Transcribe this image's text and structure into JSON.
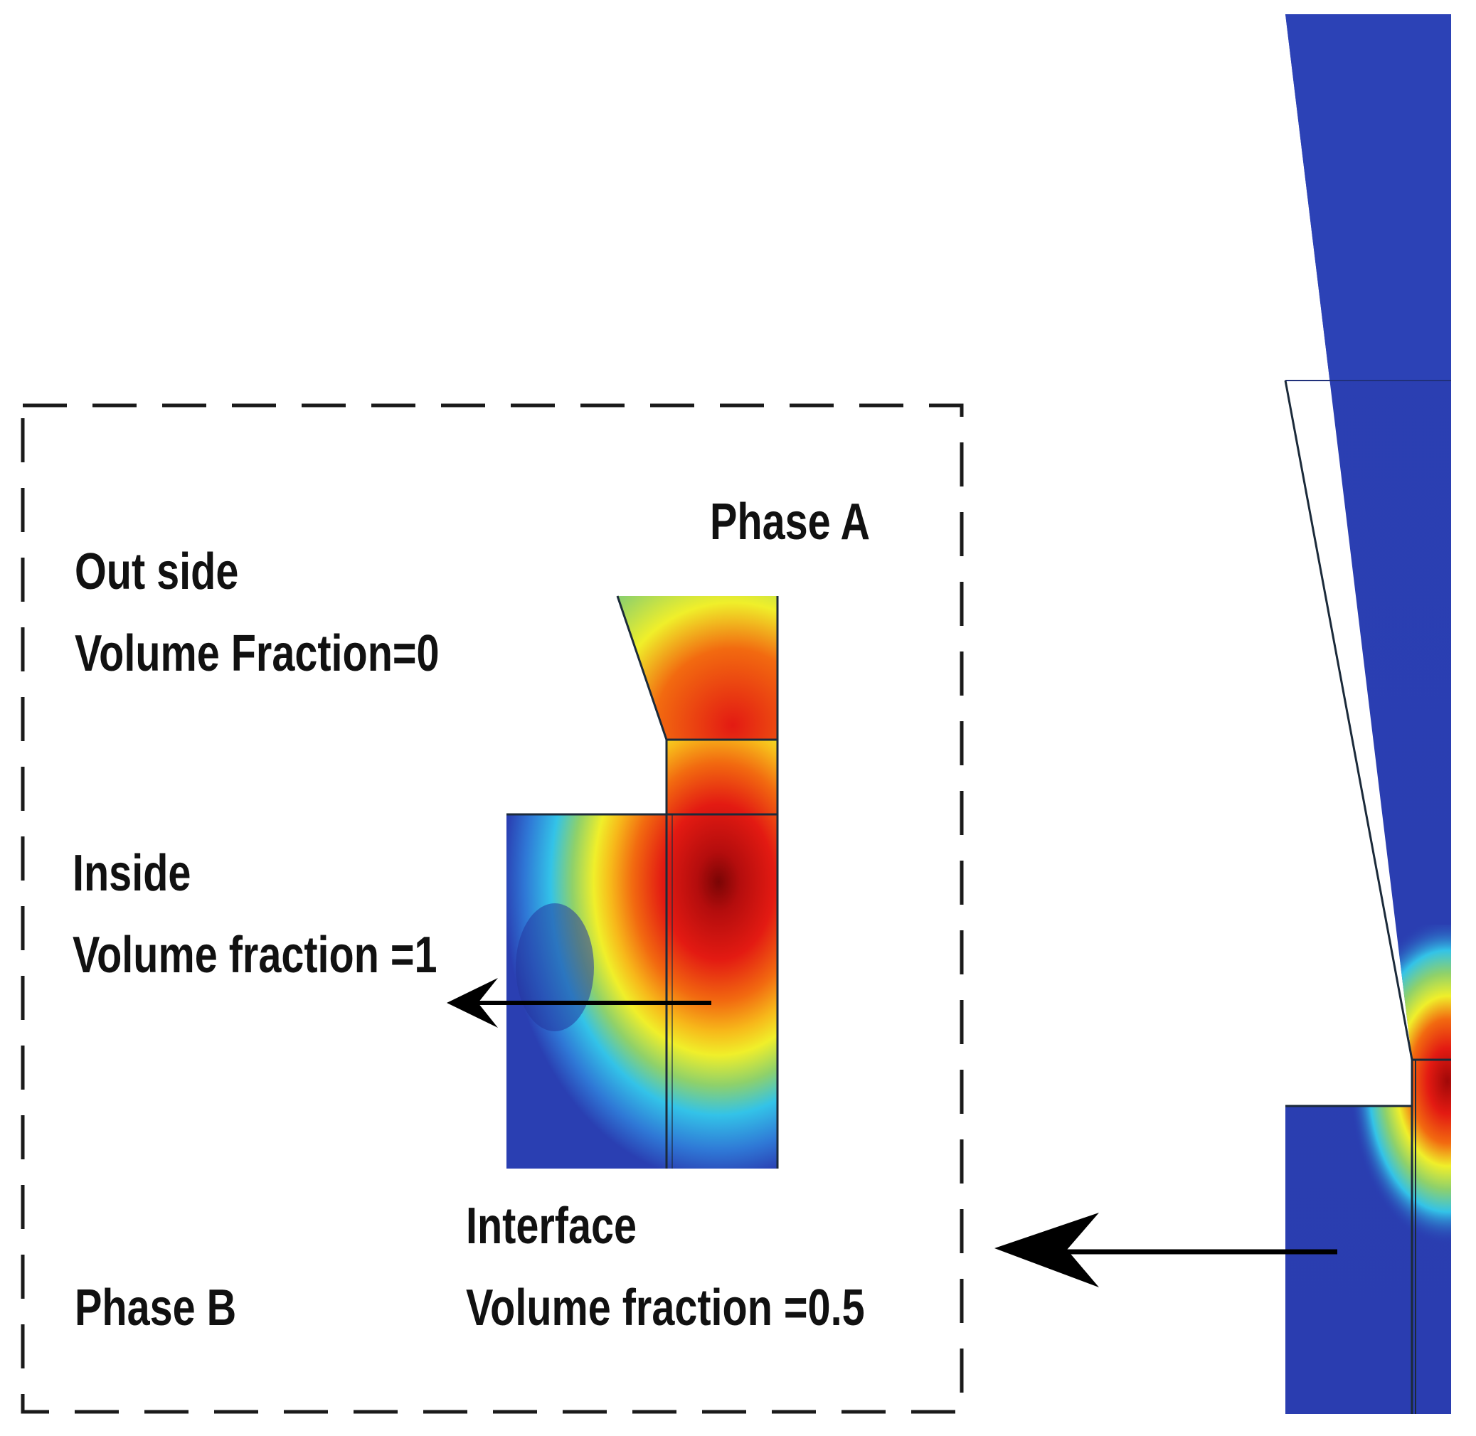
{
  "labels": {
    "phase_a": "Phase A",
    "outside_title": "Out side",
    "outside_value": "Volume Fraction=0",
    "inside_title": "Inside",
    "inside_value": "Volume fraction =1",
    "interface_title": "Interface",
    "interface_value": "Volume fraction =0.5",
    "phase_b": "Phase B"
  },
  "colors": {
    "background": "#ffffff",
    "field_low": "#2a3fb2",
    "field_high": "#d40f0f",
    "mesh_line": "#1b2a3a",
    "dashed_frame": "#1a1a1a",
    "arrow": "#000000",
    "text": "#111111"
  },
  "icons": {
    "inset_pointer": "arrow-left-icon",
    "zoom_pointer": "arrow-left-icon"
  }
}
